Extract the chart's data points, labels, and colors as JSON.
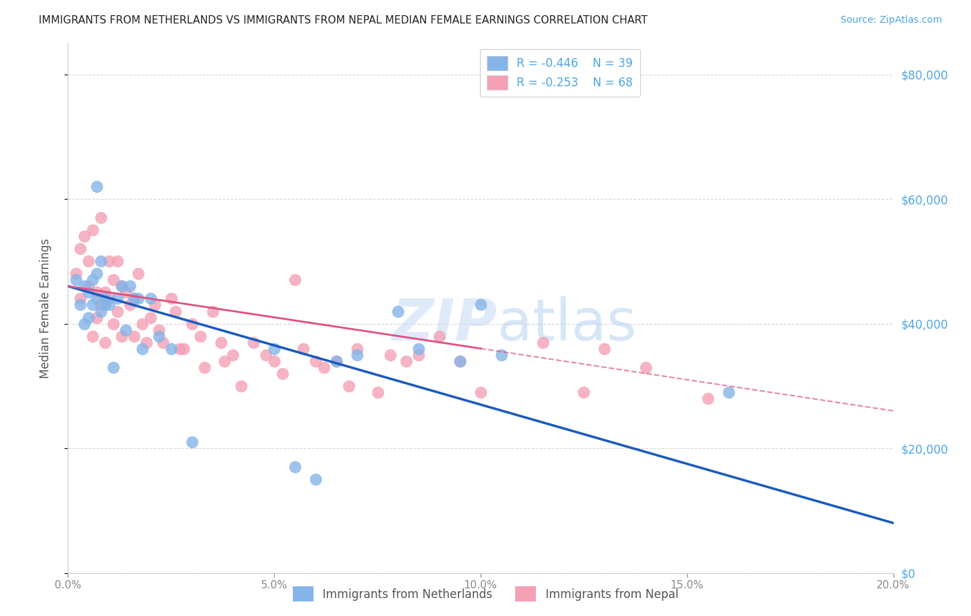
{
  "title": "IMMIGRANTS FROM NETHERLANDS VS IMMIGRANTS FROM NEPAL MEDIAN FEMALE EARNINGS CORRELATION CHART",
  "source": "Source: ZipAtlas.com",
  "ylabel": "Median Female Earnings",
  "xlim": [
    0,
    0.2
  ],
  "ylim": [
    0,
    85000
  ],
  "yticks": [
    0,
    20000,
    40000,
    60000,
    80000
  ],
  "xticks": [
    0.0,
    0.05,
    0.1,
    0.15,
    0.2
  ],
  "netherlands_R": -0.446,
  "netherlands_N": 39,
  "nepal_R": -0.253,
  "nepal_N": 68,
  "netherlands_color": "#85b4e8",
  "nepal_color": "#f4a0b5",
  "netherlands_line_color": "#1a5abf",
  "nepal_line_color": "#e05080",
  "nl_line_x0": 0.0,
  "nl_line_y0": 46000,
  "nl_line_x1": 0.2,
  "nl_line_y1": 8000,
  "np_line_x0": 0.0,
  "np_line_y0": 46000,
  "np_line_x1": 0.2,
  "np_line_y1": 26000,
  "netherlands_x": [
    0.002,
    0.003,
    0.004,
    0.004,
    0.005,
    0.005,
    0.006,
    0.006,
    0.007,
    0.007,
    0.007,
    0.008,
    0.008,
    0.009,
    0.009,
    0.01,
    0.011,
    0.012,
    0.013,
    0.014,
    0.015,
    0.016,
    0.017,
    0.018,
    0.02,
    0.022,
    0.025,
    0.03,
    0.05,
    0.055,
    0.06,
    0.065,
    0.07,
    0.08,
    0.085,
    0.095,
    0.1,
    0.105,
    0.16
  ],
  "netherlands_y": [
    47000,
    43000,
    46000,
    40000,
    45000,
    41000,
    47000,
    43000,
    48000,
    44000,
    62000,
    50000,
    42000,
    44000,
    43000,
    43000,
    33000,
    44000,
    46000,
    39000,
    46000,
    44000,
    44000,
    36000,
    44000,
    38000,
    36000,
    21000,
    36000,
    17000,
    15000,
    34000,
    35000,
    42000,
    36000,
    34000,
    43000,
    35000,
    29000
  ],
  "nepal_x": [
    0.002,
    0.003,
    0.003,
    0.004,
    0.005,
    0.005,
    0.006,
    0.006,
    0.007,
    0.007,
    0.008,
    0.008,
    0.009,
    0.009,
    0.01,
    0.01,
    0.011,
    0.011,
    0.012,
    0.012,
    0.013,
    0.013,
    0.014,
    0.015,
    0.016,
    0.016,
    0.017,
    0.018,
    0.019,
    0.02,
    0.021,
    0.022,
    0.023,
    0.025,
    0.026,
    0.027,
    0.028,
    0.03,
    0.032,
    0.033,
    0.035,
    0.037,
    0.038,
    0.04,
    0.042,
    0.045,
    0.048,
    0.05,
    0.052,
    0.055,
    0.057,
    0.06,
    0.062,
    0.065,
    0.068,
    0.07,
    0.075,
    0.078,
    0.082,
    0.085,
    0.09,
    0.095,
    0.1,
    0.115,
    0.125,
    0.13,
    0.14,
    0.155
  ],
  "nepal_y": [
    48000,
    52000,
    44000,
    54000,
    50000,
    46000,
    55000,
    38000,
    45000,
    41000,
    57000,
    43000,
    45000,
    37000,
    50000,
    44000,
    47000,
    40000,
    50000,
    42000,
    46000,
    38000,
    45000,
    43000,
    44000,
    38000,
    48000,
    40000,
    37000,
    41000,
    43000,
    39000,
    37000,
    44000,
    42000,
    36000,
    36000,
    40000,
    38000,
    33000,
    42000,
    37000,
    34000,
    35000,
    30000,
    37000,
    35000,
    34000,
    32000,
    47000,
    36000,
    34000,
    33000,
    34000,
    30000,
    36000,
    29000,
    35000,
    34000,
    35000,
    38000,
    34000,
    29000,
    37000,
    29000,
    36000,
    33000,
    28000
  ],
  "background_color": "#ffffff",
  "grid_color": "#cccccc",
  "watermark_zip": "ZIP",
  "watermark_atlas": "atlas",
  "legend_label_netherlands": "Immigrants from Netherlands",
  "legend_label_nepal": "Immigrants from Nepal",
  "right_ytick_labels": [
    "$0",
    "$20,000",
    "$40,000",
    "$60,000",
    "$80,000"
  ],
  "right_tick_color": "#4da6e8",
  "title_color": "#222222",
  "source_color": "#4da6e8",
  "ylabel_color": "#555555",
  "bottom_legend_color": "#555555"
}
